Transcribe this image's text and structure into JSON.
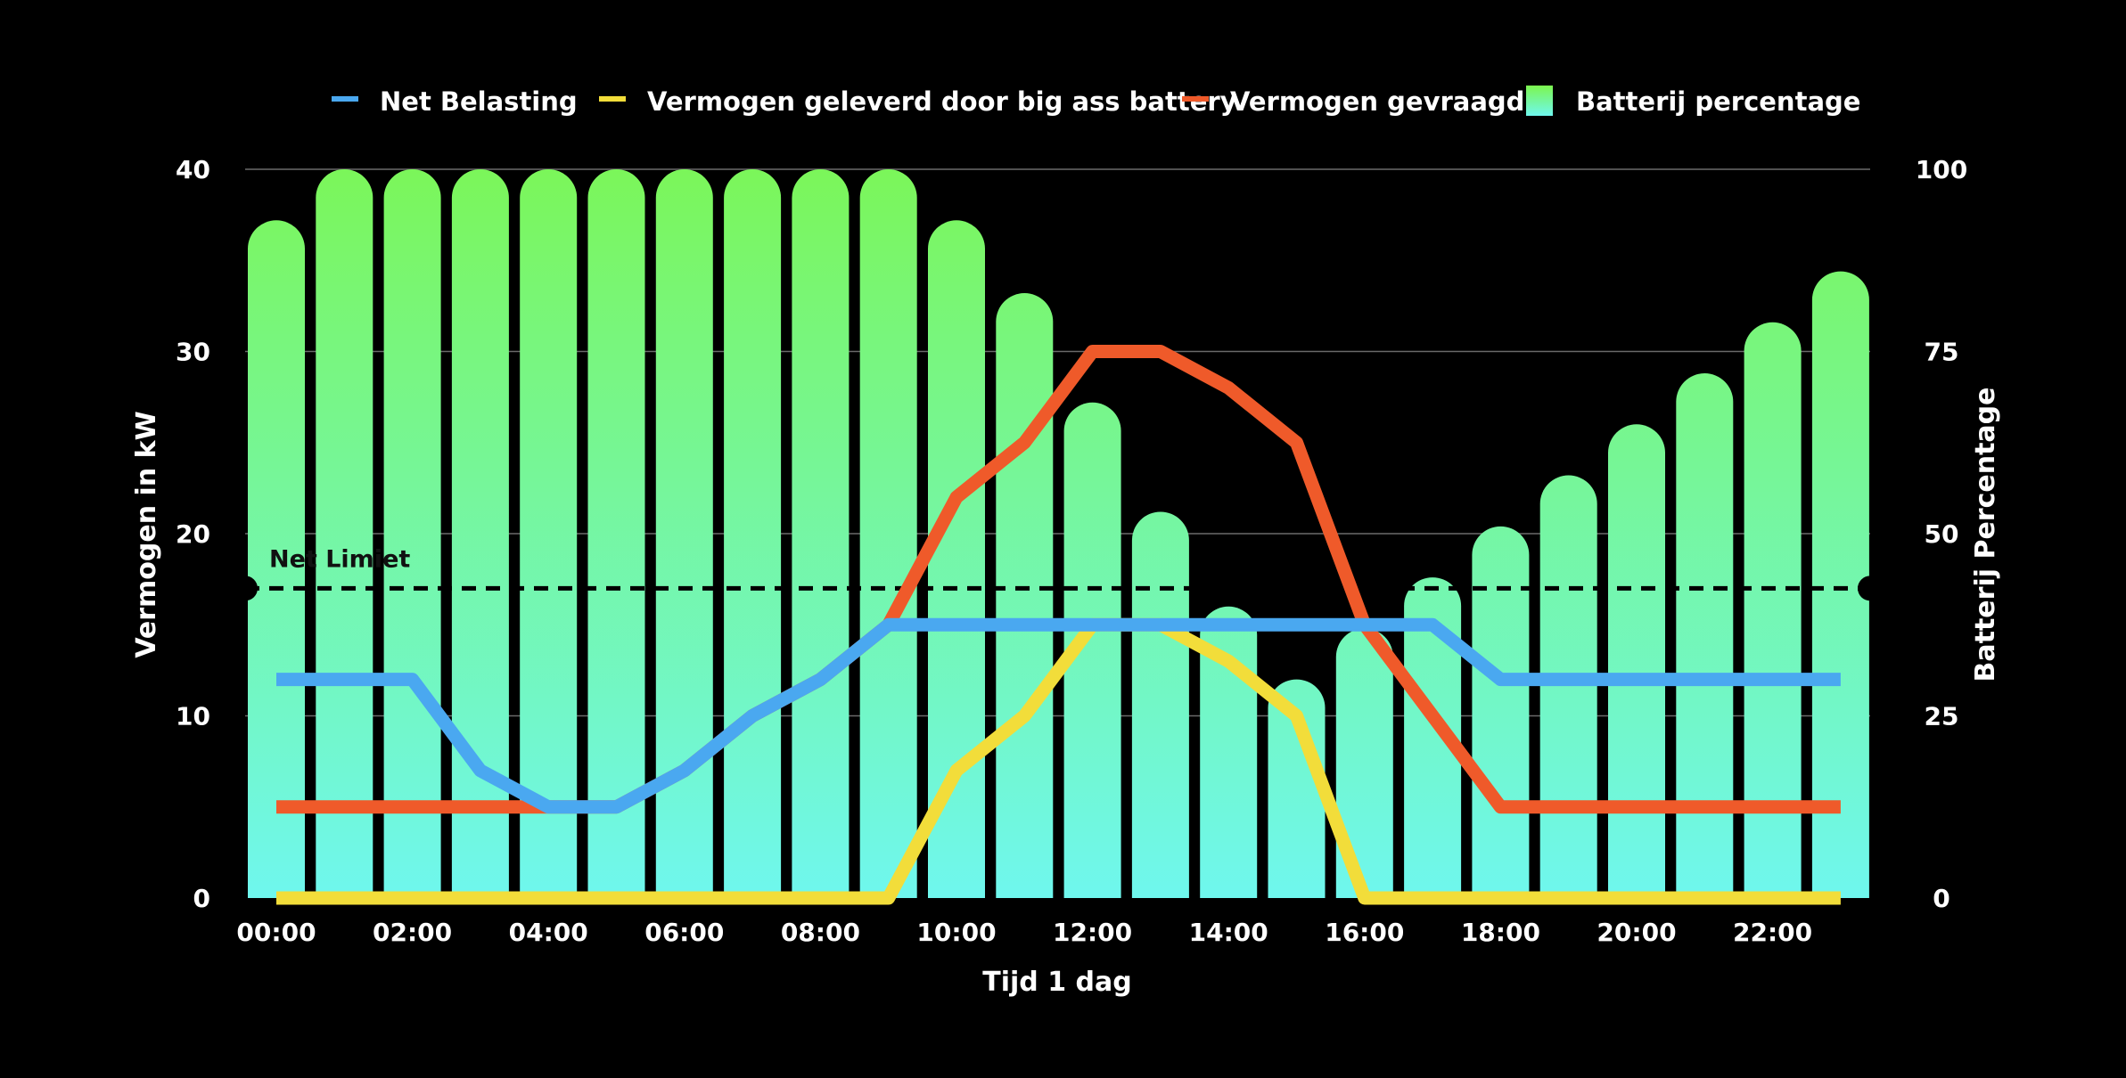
{
  "chart_data": {
    "type": "bar+line",
    "legend": [
      {
        "name": "Net Belasting",
        "color": "#4aa8f0",
        "kind": "line"
      },
      {
        "name": "Vermogen geleverd door big ass battery",
        "color": "#f2dd3a",
        "kind": "line"
      },
      {
        "name": "Vermogen gevraagd",
        "color": "#ef5a2a",
        "kind": "line"
      },
      {
        "name": "Batterij percentage",
        "color": "#7cf64e",
        "kind": "bar"
      }
    ],
    "legend_position": "top-center",
    "x_title": "Tijd 1 dag",
    "y_title": "Vermogen in kW",
    "y2_title": "Batterij Percentage",
    "ylim": [
      0,
      40
    ],
    "y_ticks": [
      "0",
      "10",
      "20",
      "30",
      "40"
    ],
    "y2lim": [
      0,
      100
    ],
    "y2_ticks": [
      "0",
      "25",
      "50",
      "75",
      "100"
    ],
    "x_tick_labels": [
      "00:00",
      "02:00",
      "04:00",
      "06:00",
      "08:00",
      "10:00",
      "12:00",
      "14:00",
      "16:00",
      "18:00",
      "20:00",
      "22:00"
    ],
    "x_hours": [
      0,
      1,
      2,
      3,
      4,
      5,
      6,
      7,
      8,
      9,
      10,
      11,
      12,
      13,
      14,
      15,
      16,
      17,
      18,
      19,
      20,
      21,
      22,
      23
    ],
    "gridlines": true,
    "bar_gradient": {
      "top": "#7cf64e",
      "bottom": "#6ff7ee"
    },
    "series": [
      {
        "name": "Batterij percentage",
        "axis": "right",
        "type": "bar",
        "values": [
          93,
          100,
          100,
          100,
          100,
          100,
          100,
          100,
          100,
          100,
          93,
          83,
          68,
          53,
          40,
          30,
          37,
          44,
          51,
          58,
          65,
          72,
          79,
          86
        ]
      },
      {
        "name": "Vermogen gevraagd",
        "axis": "left",
        "type": "line",
        "color": "#ef5a2a",
        "values": [
          5,
          5,
          5,
          5,
          5,
          5,
          7,
          10,
          12,
          15,
          22,
          25,
          30,
          30,
          28,
          25,
          15,
          10,
          5,
          5,
          5,
          5,
          5,
          5
        ]
      },
      {
        "name": "Vermogen geleverd door big ass battery",
        "axis": "left",
        "type": "line",
        "color": "#f2dd3a",
        "values": [
          0,
          0,
          0,
          0,
          0,
          0,
          0,
          0,
          0,
          0,
          7,
          10,
          15,
          15,
          13,
          10,
          0,
          0,
          0,
          0,
          0,
          0,
          0,
          0
        ]
      },
      {
        "name": "Net Belasting",
        "axis": "left",
        "type": "line",
        "color": "#4aa8f0",
        "values": [
          12,
          12,
          12,
          7,
          5,
          5,
          7,
          10,
          12,
          15,
          15,
          15,
          15,
          15,
          15,
          15,
          15,
          15,
          12,
          12,
          12,
          12,
          12,
          12
        ]
      }
    ],
    "reference_line": {
      "label": "Net Limiet",
      "value": 17,
      "style": "dashed",
      "color": "#000000"
    }
  }
}
